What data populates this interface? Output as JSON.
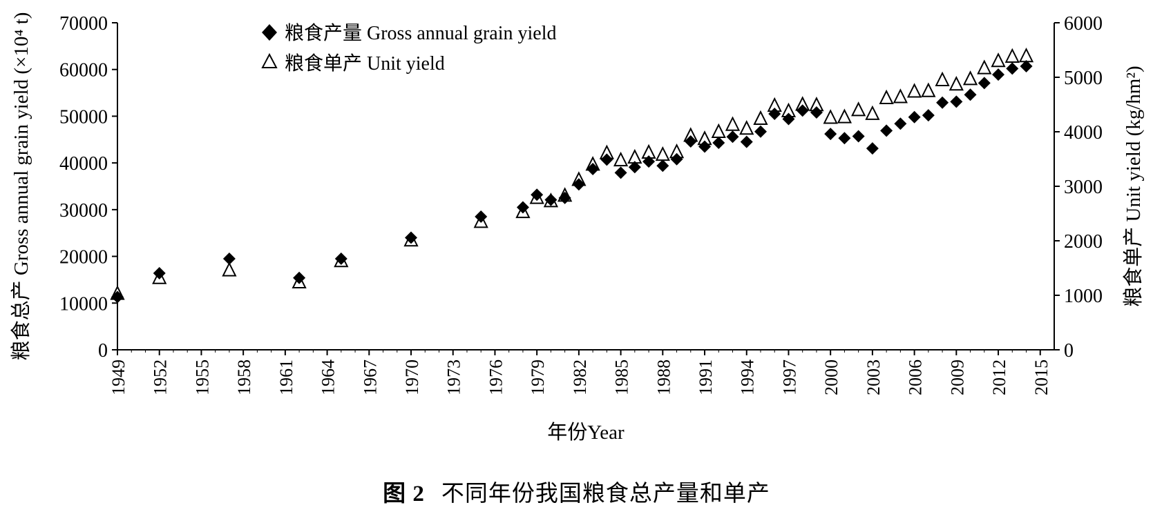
{
  "caption": {
    "figure_no": "图 2",
    "text": "不同年份我国粮食总产量和单产"
  },
  "chart_data": {
    "type": "scatter",
    "xlabel": "年份Year",
    "ylabel_left": "粮食总产 Gross annual grain yield (×10⁴ t)",
    "ylabel_right": "粮食单产 Unit yield (kg/hm²)",
    "x_ticks": [
      "1949",
      "1952",
      "1955",
      "1958",
      "1961",
      "1964",
      "1967",
      "1970",
      "1973",
      "1976",
      "1979",
      "1982",
      "1985",
      "1988",
      "1991",
      "1994",
      "1997",
      "2000",
      "2003",
      "2006",
      "2009",
      "2012",
      "2015"
    ],
    "y_left_ticks": [
      "0",
      "10000",
      "20000",
      "30000",
      "40000",
      "50000",
      "60000",
      "70000"
    ],
    "y_right_ticks": [
      "0",
      "1000",
      "2000",
      "3000",
      "4000",
      "5000",
      "6000"
    ],
    "xlim": [
      1949,
      2016
    ],
    "ylim_left": [
      0,
      70000
    ],
    "ylim_right": [
      0,
      6000
    ],
    "grid": false,
    "legend_position": "top-left",
    "series": [
      {
        "name": "粮食产量 Gross annual grain yield",
        "axis": "left",
        "marker": "filled-diamond",
        "color": "#000000",
        "points": [
          [
            1949,
            11300
          ],
          [
            1952,
            16400
          ],
          [
            1957,
            19500
          ],
          [
            1962,
            15400
          ],
          [
            1965,
            19500
          ],
          [
            1970,
            24000
          ],
          [
            1975,
            28500
          ],
          [
            1978,
            30500
          ],
          [
            1979,
            33200
          ],
          [
            1980,
            32100
          ],
          [
            1981,
            32500
          ],
          [
            1982,
            35400
          ],
          [
            1983,
            38700
          ],
          [
            1984,
            40700
          ],
          [
            1985,
            37900
          ],
          [
            1986,
            39100
          ],
          [
            1987,
            40300
          ],
          [
            1988,
            39400
          ],
          [
            1989,
            40800
          ],
          [
            1990,
            44600
          ],
          [
            1991,
            43500
          ],
          [
            1992,
            44300
          ],
          [
            1993,
            45600
          ],
          [
            1994,
            44500
          ],
          [
            1995,
            46700
          ],
          [
            1996,
            50500
          ],
          [
            1997,
            49400
          ],
          [
            1998,
            51200
          ],
          [
            1999,
            50800
          ],
          [
            2000,
            46200
          ],
          [
            2001,
            45300
          ],
          [
            2002,
            45700
          ],
          [
            2003,
            43100
          ],
          [
            2004,
            46900
          ],
          [
            2005,
            48400
          ],
          [
            2006,
            49800
          ],
          [
            2007,
            50200
          ],
          [
            2008,
            52900
          ],
          [
            2009,
            53100
          ],
          [
            2010,
            54600
          ],
          [
            2011,
            57100
          ],
          [
            2012,
            58900
          ],
          [
            2013,
            60200
          ],
          [
            2014,
            60700
          ]
        ]
      },
      {
        "name": "粮食单产 Unit yield",
        "axis": "right",
        "marker": "hollow-triangle",
        "color": "#000000",
        "points": [
          [
            1949,
            1030
          ],
          [
            1952,
            1320
          ],
          [
            1957,
            1460
          ],
          [
            1962,
            1240
          ],
          [
            1965,
            1630
          ],
          [
            1970,
            2010
          ],
          [
            1975,
            2350
          ],
          [
            1978,
            2530
          ],
          [
            1979,
            2790
          ],
          [
            1980,
            2730
          ],
          [
            1981,
            2830
          ],
          [
            1982,
            3120
          ],
          [
            1983,
            3400
          ],
          [
            1984,
            3610
          ],
          [
            1985,
            3480
          ],
          [
            1986,
            3530
          ],
          [
            1987,
            3620
          ],
          [
            1988,
            3580
          ],
          [
            1989,
            3630
          ],
          [
            1990,
            3930
          ],
          [
            1991,
            3870
          ],
          [
            1992,
            4000
          ],
          [
            1993,
            4130
          ],
          [
            1994,
            4060
          ],
          [
            1995,
            4240
          ],
          [
            1996,
            4480
          ],
          [
            1997,
            4380
          ],
          [
            1998,
            4500
          ],
          [
            1999,
            4490
          ],
          [
            2000,
            4260
          ],
          [
            2001,
            4270
          ],
          [
            2002,
            4400
          ],
          [
            2003,
            4330
          ],
          [
            2004,
            4620
          ],
          [
            2005,
            4640
          ],
          [
            2006,
            4740
          ],
          [
            2007,
            4750
          ],
          [
            2008,
            4950
          ],
          [
            2009,
            4870
          ],
          [
            2010,
            4970
          ],
          [
            2011,
            5170
          ],
          [
            2012,
            5300
          ],
          [
            2013,
            5380
          ],
          [
            2014,
            5390
          ]
        ]
      }
    ]
  }
}
